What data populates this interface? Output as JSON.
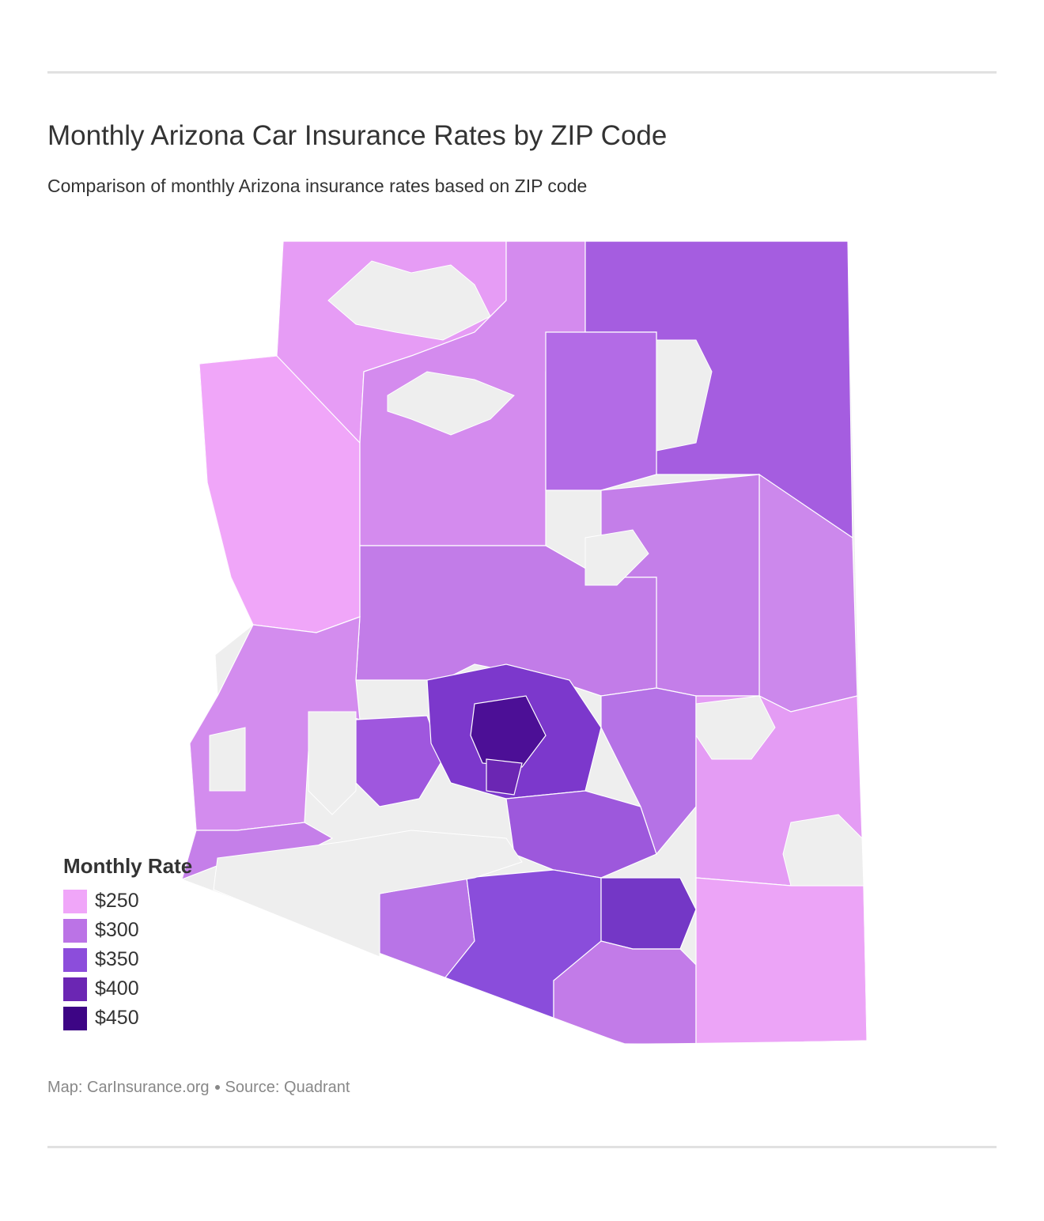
{
  "header": {
    "title": "Monthly Arizona Car Insurance Rates by ZIP Code",
    "subtitle": "Comparison of monthly Arizona insurance rates based on ZIP code"
  },
  "legend": {
    "title": "Monthly Rate",
    "items": [
      {
        "label": "$250",
        "color": "#f0a6f9"
      },
      {
        "label": "$300",
        "color": "#bb73e6"
      },
      {
        "label": "$350",
        "color": "#8c4ddb"
      },
      {
        "label": "$400",
        "color": "#6b26b3"
      },
      {
        "label": "$450",
        "color": "#3d0585"
      }
    ]
  },
  "map": {
    "no_data_color": "#eeeeee",
    "state": "Arizona"
  },
  "footer": {
    "map_credit": "Map: CarInsurance.org",
    "source": "Source: Quadrant"
  }
}
